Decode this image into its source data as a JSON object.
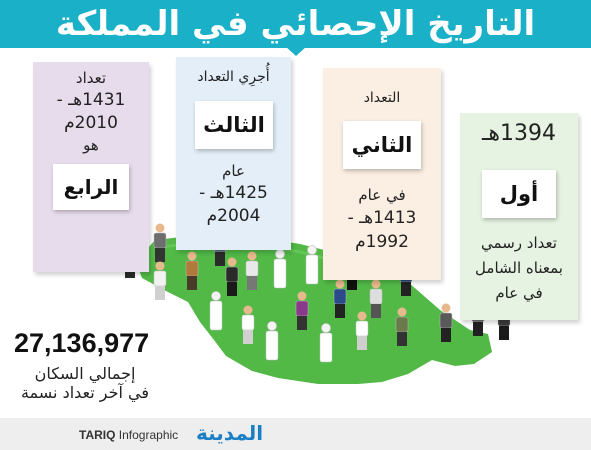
{
  "header": {
    "title": "التاريخ الإحصائي في المملكة"
  },
  "censuses": [
    {
      "ordinal": "أول",
      "year_hijri": "1394هـ",
      "line1": "تعداد رسمي",
      "line2": "بمعناه الشامل",
      "line3": "في عام"
    },
    {
      "ordinal": "الثاني",
      "title": "التعداد",
      "line1": "في عام",
      "line2": "1413هـ -",
      "line3": "1992م"
    },
    {
      "ordinal": "الثالث",
      "title": "أُجرِي التعداد",
      "line1": "عام",
      "line2": "1425هـ -",
      "line3": "2004م"
    },
    {
      "ordinal": "الرابع",
      "line1": "تعداد",
      "line2": "1431هـ -",
      "line3": "2010م",
      "line4": "هو"
    }
  ],
  "total": {
    "value": "27,136,977",
    "label_line1": "إجمالي السكان",
    "label_line2": "في آخر تعداد نسمة"
  },
  "footer": {
    "brand_bold": "TARIQ",
    "brand_rest": " Infographic",
    "logo": "المدينة"
  },
  "colors": {
    "header": "#1ab0c7",
    "card_first": "#e6f2e2",
    "card_second": "#fbeee2",
    "card_third": "#e3eef8",
    "card_fourth": "#e7dcec",
    "map": "#52b947"
  }
}
